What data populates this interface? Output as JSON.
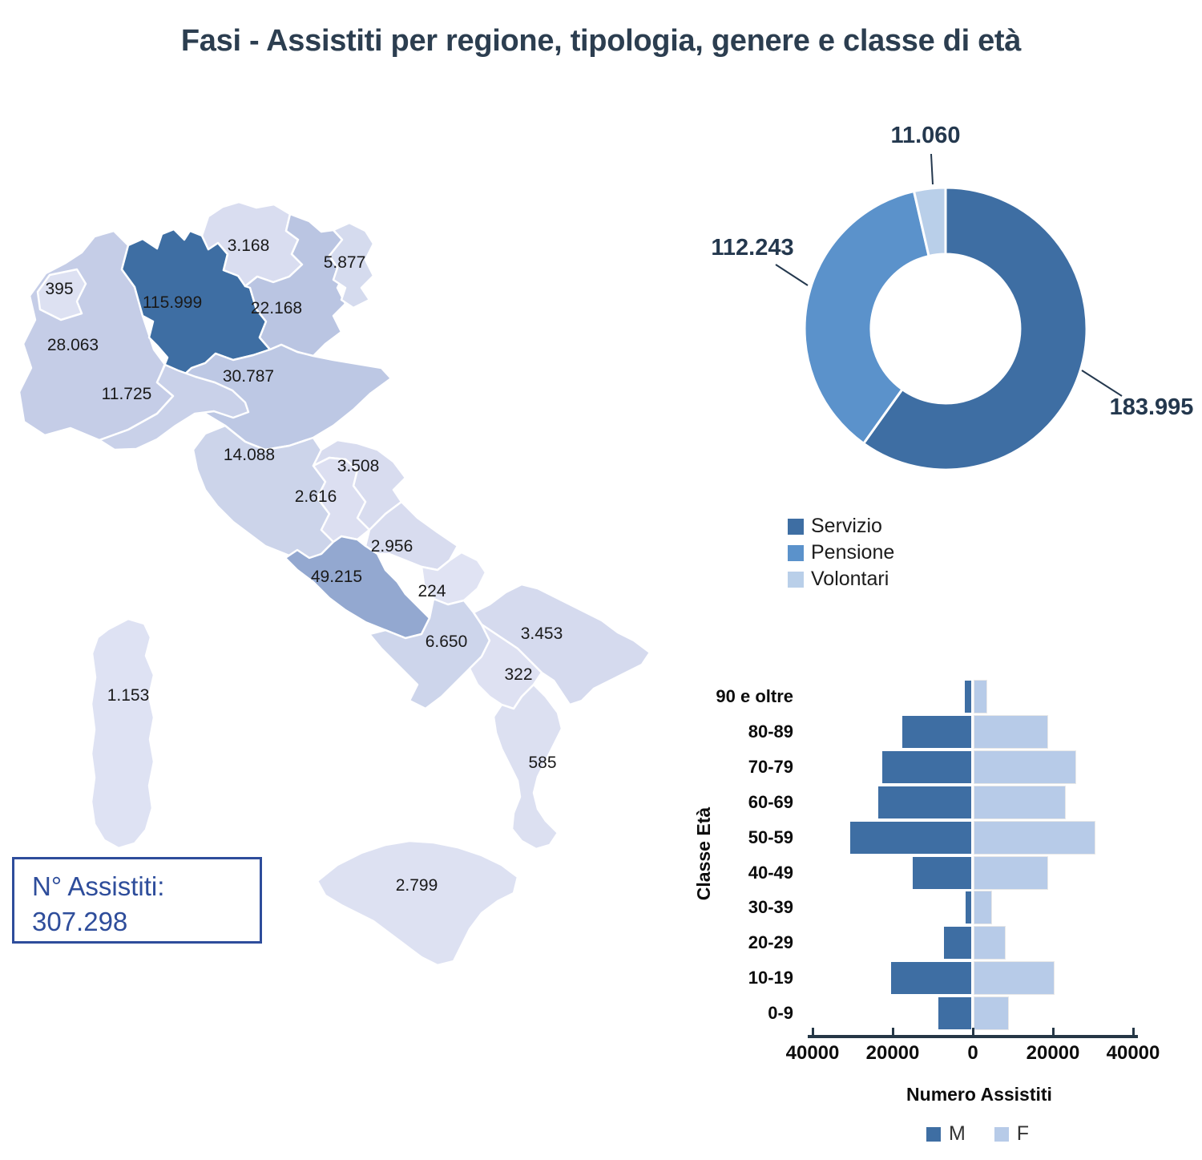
{
  "title": "Fasi - Assistiti per regione, tipologia, genere e classe di età",
  "colors": {
    "dark_blue": "#3e6ea3",
    "medium_blue": "#5b92cb",
    "light_blue": "#b9cfe9",
    "female_bar": "#b7cbe8",
    "navy_text": "#24384e",
    "title_color": "#2c3e50",
    "box_blue": "#2e4d9b",
    "axis_color": "#253746"
  },
  "summary_box": {
    "label": "N° Assistiti:",
    "value": "307.298"
  },
  "map": {
    "regions": [
      {
        "id": "piemonte",
        "name": "Piemonte",
        "value": 28063,
        "display": "28.063",
        "fill": "#c5cde7",
        "label_color": "#1a1a1a"
      },
      {
        "id": "valledaosta",
        "name": "Valle d'Aosta",
        "value": 395,
        "display": "395",
        "fill": "#dde1f2",
        "label_color": "#1a1a1a"
      },
      {
        "id": "lombardia",
        "name": "Lombardia",
        "value": 115999,
        "display": "115.999",
        "fill": "#3e6ea3",
        "label_color": "#ffffff"
      },
      {
        "id": "trentino",
        "name": "Trentino-Alto Adige",
        "value": 3168,
        "display": "3.168",
        "fill": "#d9ddf0",
        "label_color": "#1a1a1a"
      },
      {
        "id": "veneto",
        "name": "Veneto",
        "value": 22168,
        "display": "22.168",
        "fill": "#bac5e2",
        "label_color": "#1a1a1a"
      },
      {
        "id": "friuli",
        "name": "Friuli-Venezia Giulia",
        "value": 5877,
        "display": "5.877",
        "fill": "#d5dbee",
        "label_color": "#1a1a1a"
      },
      {
        "id": "liguria",
        "name": "Liguria",
        "value": 11725,
        "display": "11.725",
        "fill": "#c9d1e9",
        "label_color": "#1a1a1a"
      },
      {
        "id": "emilia",
        "name": "Emilia-Romagna",
        "value": 30787,
        "display": "30.787",
        "fill": "#bdc8e4",
        "label_color": "#1a1a1a"
      },
      {
        "id": "toscana",
        "name": "Toscana",
        "value": 14088,
        "display": "14.088",
        "fill": "#ccd4ea",
        "label_color": "#1a1a1a"
      },
      {
        "id": "umbria",
        "name": "Umbria",
        "value": 2616,
        "display": "2.616",
        "fill": "#dcdff1",
        "label_color": "#1a1a1a"
      },
      {
        "id": "marche",
        "name": "Marche",
        "value": 3508,
        "display": "3.508",
        "fill": "#d8dcef",
        "label_color": "#1a1a1a"
      },
      {
        "id": "lazio",
        "name": "Lazio",
        "value": 49215,
        "display": "49.215",
        "fill": "#93a8d0",
        "label_color": "#1a1a1a"
      },
      {
        "id": "abruzzo",
        "name": "Abruzzo",
        "value": 2956,
        "display": "2.956",
        "fill": "#d8dcef",
        "label_color": "#1a1a1a"
      },
      {
        "id": "molise",
        "name": "Molise",
        "value": 224,
        "display": "224",
        "fill": "#e0e3f3",
        "label_color": "#1a1a1a"
      },
      {
        "id": "campania",
        "name": "Campania",
        "value": 6650,
        "display": "6.650",
        "fill": "#cdd5eb",
        "label_color": "#1a1a1a"
      },
      {
        "id": "puglia",
        "name": "Puglia",
        "value": 3453,
        "display": "3.453",
        "fill": "#d5daee",
        "label_color": "#1a1a1a"
      },
      {
        "id": "basilicata",
        "name": "Basilicata",
        "value": 322,
        "display": "322",
        "fill": "#dee1f2",
        "label_color": "#1a1a1a"
      },
      {
        "id": "calabria",
        "name": "Calabria",
        "value": 585,
        "display": "585",
        "fill": "#dce0f1",
        "label_color": "#1a1a1a"
      },
      {
        "id": "sicilia",
        "name": "Sicilia",
        "value": 2799,
        "display": "2.799",
        "fill": "#dde1f2",
        "label_color": "#1a1a1a"
      },
      {
        "id": "sardegna",
        "name": "Sardegna",
        "value": 1153,
        "display": "1.153",
        "fill": "#dee2f3",
        "label_color": "#1a1a1a"
      }
    ]
  },
  "chart_data": [
    {
      "type": "pie",
      "subtype": "donut",
      "slices": [
        {
          "label": "Servizio",
          "value": 183995,
          "display": "183.995",
          "color": "#3e6ea3"
        },
        {
          "label": "Pensione",
          "value": 112243,
          "display": "112.243",
          "color": "#5b92cb"
        },
        {
          "label": "Volontari",
          "value": 11060,
          "display": "11.060",
          "color": "#b9cfe9"
        }
      ],
      "total": 307298,
      "start_angle_deg": 0,
      "direction": "clockwise",
      "inner_radius_ratio": 0.53,
      "legend_position": "bottom-left"
    },
    {
      "type": "bar",
      "subtype": "population-pyramid",
      "categories": [
        "90 e oltre",
        "80-89",
        "70-79",
        "60-69",
        "50-59",
        "40-49",
        "30-39",
        "20-29",
        "10-19",
        "0-9"
      ],
      "series": [
        {
          "name": "M",
          "color": "#3e6ea3",
          "values": [
            1700,
            17300,
            22200,
            23200,
            30200,
            14700,
            1500,
            6900,
            20000,
            8200
          ]
        },
        {
          "name": "F",
          "color": "#b7cbe8",
          "values": [
            2900,
            18200,
            25100,
            22500,
            29900,
            18200,
            4200,
            7500,
            19700,
            8400
          ]
        }
      ],
      "xlabel": "Numero Assistiti",
      "ylabel": "Classe Età",
      "x_ticks": [
        "40000",
        "20000",
        "0",
        "20000",
        "40000"
      ],
      "xlim": [
        -40000,
        40000
      ],
      "grid": false,
      "legend_position": "bottom"
    }
  ]
}
